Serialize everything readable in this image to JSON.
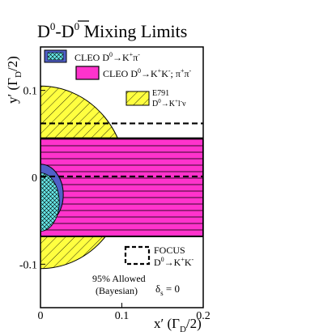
{
  "chart_data": {
    "type": "area",
    "title_parts": {
      "d": "D",
      "sup0a": "0",
      "dash": "-",
      "dbar": "D",
      "sup0b": "0",
      "rest": " Mixing Limits"
    },
    "xlabel": "x′ (Γ",
    "xlabel_sub": "D",
    "xlabel_end": "/2)",
    "ylabel": "y′ (Γ",
    "ylabel_sub": "D",
    "ylabel_end": "/2)",
    "xlim": [
      0.0,
      0.2
    ],
    "ylim": [
      -0.15,
      0.15
    ],
    "x_ticks": [
      {
        "value": 0.0,
        "label": "0"
      },
      {
        "value": 0.1,
        "label": "0.1"
      },
      {
        "value": 0.2,
        "label": "0.2"
      }
    ],
    "y_ticks": [
      {
        "value": 0.1,
        "label": "0.1"
      },
      {
        "value": 0.0,
        "label": "0"
      },
      {
        "value": -0.1,
        "label": "-0.1"
      }
    ],
    "regions": {
      "e791_radius": 0.105,
      "cleo_kkpipi": {
        "x": [
          0.0,
          0.2
        ],
        "y": [
          -0.068,
          0.045
        ]
      },
      "focus_band": {
        "y": [
          0.001,
          0.062
        ]
      },
      "cleo_kpi_blue_radius": 0.028,
      "cleo_kpi_cyan_radius": 0.022
    },
    "colors": {
      "e791": "#ffff40",
      "cleo_kkpipi": "#ff33cc",
      "cleo_kpi_outer": "#5060c8",
      "cleo_kpi_inner": "#66e8e8"
    },
    "legend": {
      "cleo_kpi_a": "CLEO  D",
      "cleo_kpi_b": "→K",
      "cleo_kpi_c": "π",
      "cleo_kk_a": "CLEO D",
      "cleo_kk_b": "→K",
      "cleo_kk_c": "K",
      "cleo_kk_d": "; π",
      "cleo_kk_e": "π",
      "e791_line1": "E791",
      "e791_a": "D",
      "e791_b": "→K",
      "e791_c": "l",
      "e791_d": "ν",
      "focus_line1": "FOCUS",
      "focus_a": "D",
      "focus_b": "→K",
      "focus_c": "K",
      "sup_zero": "0",
      "sup_plus": "+",
      "sup_minus": "-",
      "sup_plusminus": "±",
      "sup_mp": "∓"
    },
    "annotations": {
      "allowed": "95% Allowed",
      "bayesian": "(Bayesian)",
      "delta": "δ",
      "delta_sub": "s",
      "delta_val": " = 0"
    }
  }
}
